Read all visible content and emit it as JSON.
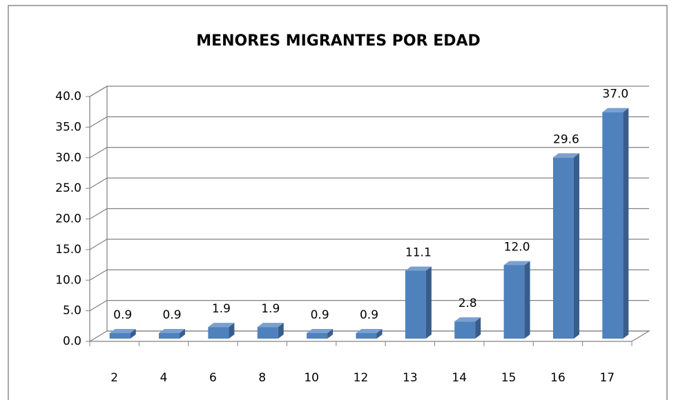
{
  "chart_data": {
    "type": "bar3d",
    "title": "MENORES MIGRANTES POR EDAD",
    "categories": [
      "2",
      "4",
      "6",
      "8",
      "10",
      "12",
      "13",
      "14",
      "15",
      "16",
      "17"
    ],
    "values": [
      0.9,
      0.9,
      1.9,
      1.9,
      0.9,
      0.9,
      11.1,
      2.8,
      12.0,
      29.6,
      37.0
    ],
    "value_labels": [
      "0.9",
      "0.9",
      "1.9",
      "1.9",
      "0.9",
      "0.9",
      "11.1",
      "2.8",
      "12.0",
      "29.6",
      "37.0"
    ],
    "color": "#4f81bd",
    "ylim": [
      0,
      40
    ],
    "yticks": [
      {
        "value": 0,
        "label": "0.0"
      },
      {
        "value": 5,
        "label": "5.0"
      },
      {
        "value": 10,
        "label": "10.0"
      },
      {
        "value": 15,
        "label": "15.0"
      },
      {
        "value": 20,
        "label": "20.0"
      },
      {
        "value": 25,
        "label": "25.0"
      },
      {
        "value": 30,
        "label": "30.0"
      },
      {
        "value": 35,
        "label": "35.0"
      },
      {
        "value": 40,
        "label": "40.0"
      }
    ],
    "grid": true
  }
}
